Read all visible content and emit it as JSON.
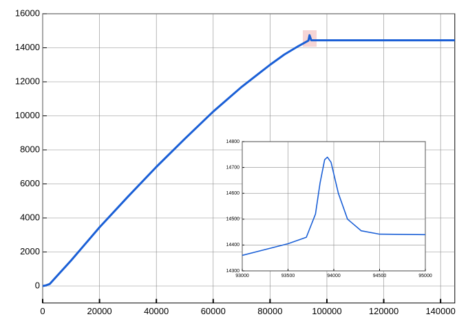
{
  "chart_data": [
    {
      "type": "line",
      "x": [
        0,
        1000,
        2500,
        4000,
        10000,
        20000,
        30000,
        40000,
        50000,
        60000,
        70000,
        80000,
        85000,
        90000,
        93500,
        93900,
        94500,
        100000,
        145000
      ],
      "values": [
        0,
        30,
        120,
        400,
        1500,
        3450,
        5250,
        7000,
        8650,
        10250,
        11700,
        13000,
        13600,
        14100,
        14420,
        14740,
        14440,
        14440,
        14440
      ],
      "color": "#1a5fd6",
      "xlim": [
        0,
        145000
      ],
      "ylim": [
        -1000,
        16000
      ],
      "xticks": [
        0,
        20000,
        40000,
        60000,
        80000,
        100000,
        120000,
        140000
      ],
      "yticks": [
        0,
        2000,
        4000,
        6000,
        8000,
        10000,
        12000,
        14000,
        16000
      ],
      "grid": true
    },
    {
      "type": "line",
      "x": [
        93000,
        93500,
        93700,
        93800,
        93850,
        93900,
        93930,
        93970,
        94050,
        94150,
        94300,
        94500,
        95000
      ],
      "values": [
        14360,
        14405,
        14430,
        14520,
        14640,
        14730,
        14740,
        14720,
        14600,
        14500,
        14455,
        14442,
        14440
      ],
      "color": "#1a5fd6",
      "xlim": [
        93000,
        95000
      ],
      "ylim": [
        14300,
        14800
      ],
      "xticks": [
        93000,
        93500,
        94000,
        94500,
        95000
      ],
      "yticks": [
        14300,
        14400,
        14500,
        14600,
        14700,
        14800
      ],
      "grid": true
    }
  ]
}
